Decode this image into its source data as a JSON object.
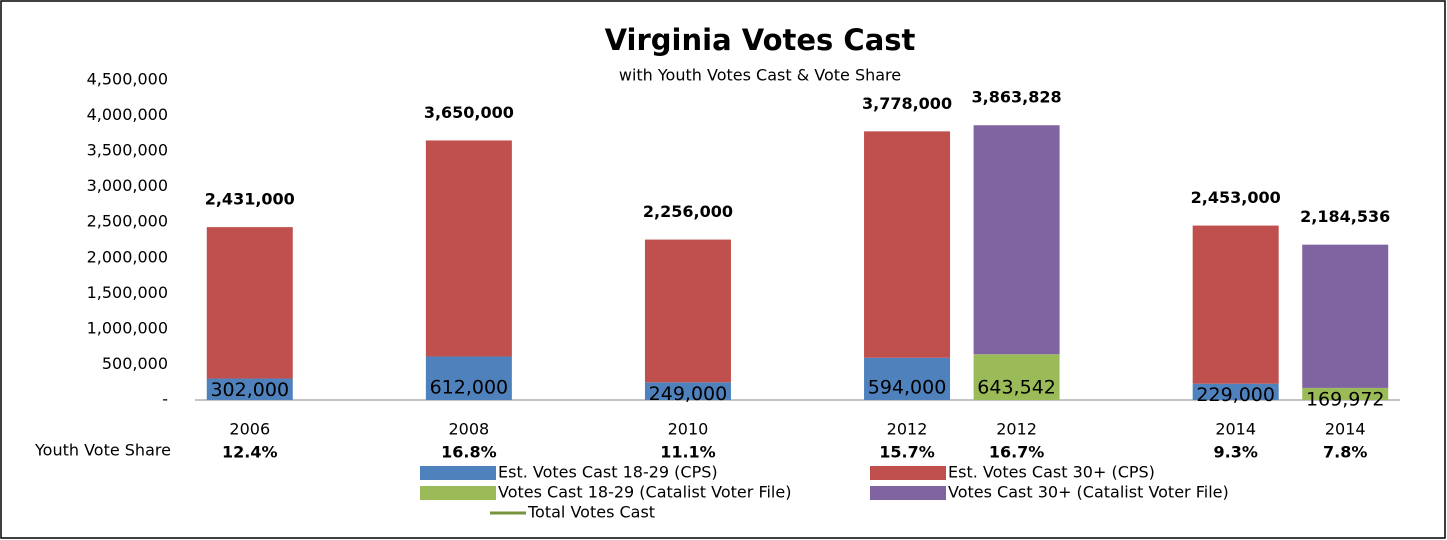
{
  "chart_data": {
    "type": "bar",
    "stacked": true,
    "title": "Virginia Votes Cast",
    "subtitle": "with Youth Votes Cast & Vote Share",
    "categories": [
      "2006",
      null,
      "2008",
      null,
      "2010",
      null,
      "2012",
      "2012",
      null,
      "2014",
      "2014"
    ],
    "series": [
      {
        "name": "Est. Votes Cast 18-29 (CPS)",
        "color": "#4f81bd",
        "label_color": "#ffffff",
        "values": [
          302000,
          null,
          612000,
          null,
          249000,
          null,
          594000,
          null,
          null,
          229000,
          null
        ],
        "value_labels": [
          "302,000",
          null,
          "612,000",
          null,
          "249,000",
          null,
          "594,000",
          null,
          null,
          "229,000",
          null
        ]
      },
      {
        "name": "Est. Votes Cast 30+ (CPS)",
        "color": "#c0504d",
        "values": [
          2129000,
          null,
          3038000,
          null,
          2007000,
          null,
          3184000,
          null,
          null,
          2224000,
          null
        ]
      },
      {
        "name": "Votes Cast 18-29 (Catalist Voter File)",
        "color": "#9bbb59",
        "label_color": "#333333",
        "values": [
          null,
          null,
          null,
          null,
          null,
          null,
          null,
          643542,
          null,
          null,
          169972
        ],
        "value_labels": [
          null,
          null,
          null,
          null,
          null,
          null,
          null,
          "643,542",
          null,
          null,
          "169,972"
        ]
      },
      {
        "name": "Votes Cast 30+ (Catalist Voter File)",
        "color": "#8064a2",
        "values": [
          null,
          null,
          null,
          null,
          null,
          null,
          null,
          3220286,
          null,
          null,
          2014564
        ]
      },
      {
        "name": "Total Votes Cast",
        "type": "line",
        "color": "#77933c",
        "values": [
          2431000,
          null,
          3650000,
          null,
          2256000,
          null,
          3778000,
          3863828,
          null,
          2453000,
          2184536
        ],
        "value_labels": [
          "2,431,000",
          null,
          "3,650,000",
          null,
          "2,256,000",
          null,
          "3,778,000",
          "3,863,828",
          null,
          "2,453,000",
          "2,184,536"
        ]
      }
    ],
    "ylim": [
      0,
      4500000
    ],
    "yticks": [
      {
        "value": 0,
        "label": "-"
      },
      {
        "value": 500000,
        "label": "500,000"
      },
      {
        "value": 1000000,
        "label": "1,000,000"
      },
      {
        "value": 1500000,
        "label": "1,500,000"
      },
      {
        "value": 2000000,
        "label": "2,000,000"
      },
      {
        "value": 2500000,
        "label": "2,500,000"
      },
      {
        "value": 3000000,
        "label": "3,000,000"
      },
      {
        "value": 3500000,
        "label": "3,500,000"
      },
      {
        "value": 4000000,
        "label": "4,000,000"
      },
      {
        "value": 4500000,
        "label": "4,500,000"
      }
    ],
    "grid": false,
    "youth_vote_share": {
      "label": "Youth Vote Share",
      "color": "#4f81bd",
      "labels": [
        "12.4%",
        null,
        "16.8%",
        null,
        "11.1%",
        null,
        "15.7%",
        "16.7%",
        null,
        "9.3%",
        "7.8%"
      ]
    }
  }
}
